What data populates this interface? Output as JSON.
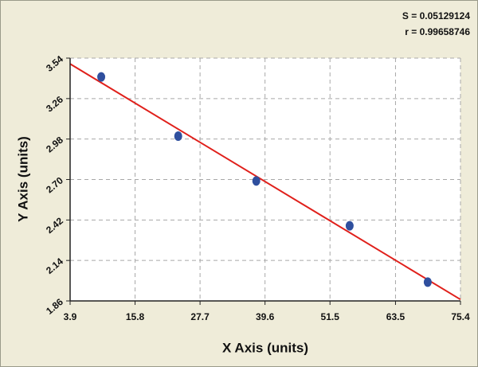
{
  "chart_data": {
    "type": "scatter",
    "annotations": [
      "S = 0.05129124",
      "r = 0.99658746"
    ],
    "x_label": "X Axis (units)",
    "y_label": "Y Axis (units)",
    "xlim": [
      3.9,
      75.4
    ],
    "xticks": [
      3.9,
      15.8,
      27.7,
      39.6,
      51.5,
      63.5,
      75.4
    ],
    "ylim": [
      1.86,
      3.54
    ],
    "yticks": [
      1.86,
      2.14,
      2.42,
      {
        "value": 2.7,
        "label": "2.70"
      },
      2.98,
      3.26,
      3.54
    ],
    "grid": true,
    "series": [
      {
        "mode": "markers",
        "color": "#2f4f9e",
        "x": [
          9.6,
          23.7,
          38.0,
          55.1,
          69.4
        ],
        "values": [
          3.41,
          3.0,
          2.69,
          2.38,
          1.99
        ]
      },
      {
        "mode": "line",
        "color": "#e0201b",
        "x": [
          3.9,
          75.4
        ],
        "values": [
          3.5,
          1.87
        ]
      }
    ]
  }
}
